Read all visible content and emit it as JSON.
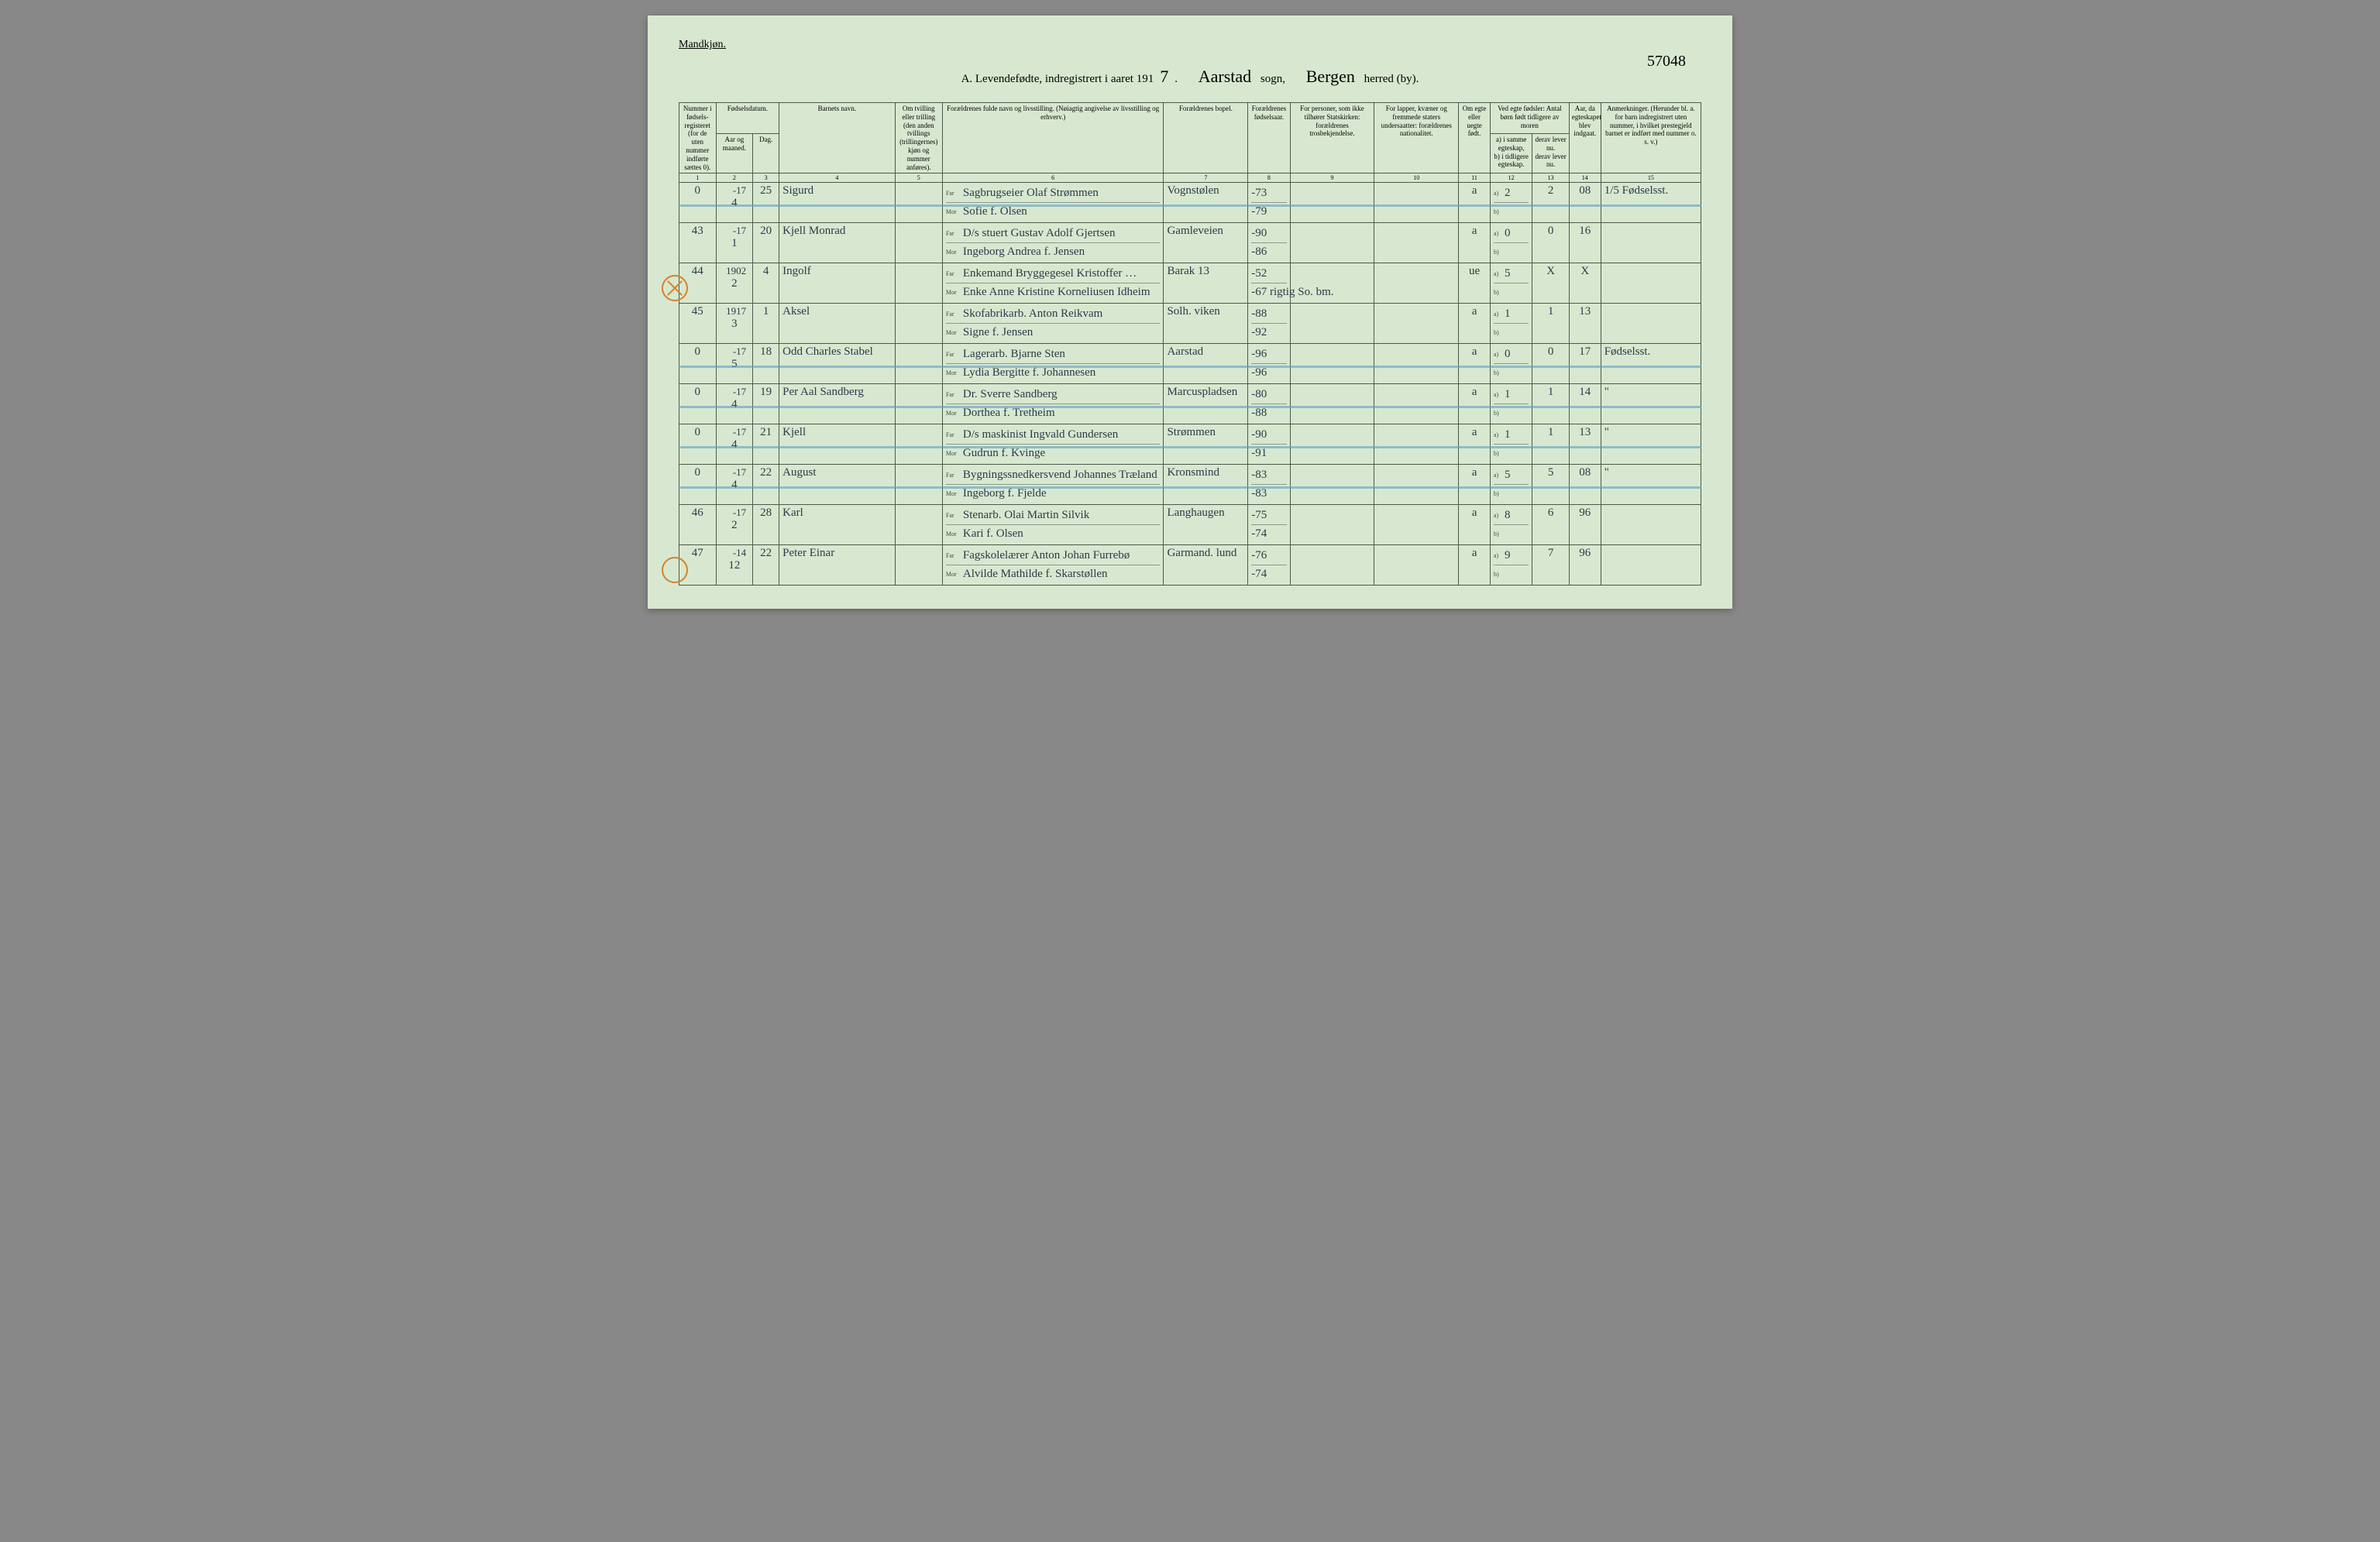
{
  "page": {
    "gender_label": "Mandkjøn.",
    "title_prefix": "A. Levendefødte, indregistrert i aaret 191",
    "year_suffix": "7",
    "sogn_value": "Aarstad",
    "sogn_label": "sogn,",
    "herred_value": "Bergen",
    "herred_label": "herred (by).",
    "page_code": "57048"
  },
  "headers": {
    "h1": "Nummer i fødsels-registeret (for de uten nummer indførte sættes 0).",
    "h2_top": "Fødselsdatum.",
    "h2a": "Aar og maaned.",
    "h2b": "Dag.",
    "h4": "Barnets navn.",
    "h5": "Om tvilling eller trilling (den anden tvillings (trillingernes) kjøn og nummer anføres).",
    "h6": "Forældrenes fulde navn og livsstilling. (Nøiagtig angivelse av livsstilling og erhverv.)",
    "h7": "Forældrenes bopel.",
    "h8": "Forældrenes fødselsaar.",
    "h9": "For personer, som ikke tilhører Statskirken: forældrenes trosbekjendelse.",
    "h10": "For lapper, kvæner og fremmede staters undersaatter: forældrenes nationalitet.",
    "h11": "Om egte eller uegte født.",
    "h12_top": "Ved egte fødsler: Antal børn født tidligere av moren",
    "h12a": "a) i samme egteskap,",
    "h12b": "b) i tidligere egteskap.",
    "h13a": "derav lever nu.",
    "h13b": "derav lever nu.",
    "h14": "Aar, da egteskapet blev indgaat.",
    "h15": "Anmerkninger. (Herunder bl. a. for barn indregistrert uten nummer, i hvilket prestegjeld barnet er indført med nummer o. s. v.)"
  },
  "colnums": [
    "1",
    "2",
    "3",
    "4",
    "5",
    "6",
    "7",
    "8",
    "9",
    "10",
    "11",
    "12",
    "13",
    "14",
    "15"
  ],
  "parent_labels": {
    "far": "Far",
    "mor": "Mor",
    "a": "a)",
    "b": "b)"
  },
  "rows": [
    {
      "num": "0",
      "year": "-17",
      "month": "4",
      "day": "25",
      "name": "Sigurd",
      "far": "Sagbrugseier Olaf Strømmen",
      "mor": "Sofie f. Olsen",
      "bopel": "Vognstølen",
      "far_yr": "-73",
      "mor_yr": "-79",
      "egte": "a",
      "c12a": "2",
      "c13a": "2",
      "c14": "08",
      "remarks": "1/5   Fødselsst.",
      "highlight": true
    },
    {
      "num": "43",
      "year": "-17",
      "month": "1",
      "day": "20",
      "name": "Kjell Monrad",
      "far": "D/s stuert Gustav Adolf Gjertsen",
      "mor": "Ingeborg Andrea f. Jensen",
      "bopel": "Gamleveien",
      "far_yr": "-90",
      "mor_yr": "-86",
      "egte": "a",
      "c12a": "0",
      "c13a": "0",
      "c14": "16",
      "remarks": ""
    },
    {
      "num": "44",
      "year": "1902",
      "month": "2",
      "day": "4",
      "name": "Ingolf",
      "far": "Enkemand Bryggegesel Kristoffer …",
      "mor": "Enke Anne Kristine Korneliusen Idheim",
      "bopel": "Barak 13",
      "far_yr": "-52",
      "mor_yr": "-67 rigtig So. bm.",
      "egte": "ue",
      "c12a": "5",
      "c13a": "X",
      "c14": "X",
      "remarks": "",
      "circle_x": true
    },
    {
      "num": "45",
      "year": "1917",
      "month": "3",
      "day": "1",
      "name": "Aksel",
      "far": "Skofabrikarb. Anton Reikvam",
      "mor": "Signe f. Jensen",
      "bopel": "Solh. viken",
      "far_yr": "-88",
      "mor_yr": "-92",
      "egte": "a",
      "c12a": "1",
      "c13a": "1",
      "c14": "13",
      "remarks": ""
    },
    {
      "num": "0",
      "year": "-17",
      "month": "5",
      "day": "18",
      "name": "Odd Charles Stabel",
      "far": "Lagerarb. Bjarne Sten",
      "mor": "Lydia Bergitte f. Johannesen",
      "bopel": "Aarstad",
      "far_yr": "-96",
      "mor_yr": "-96",
      "egte": "a",
      "c12a": "0",
      "c13a": "0",
      "c14": "17",
      "remarks": "Fødselsst.",
      "highlight": true
    },
    {
      "num": "0",
      "year": "-17",
      "month": "4",
      "day": "19",
      "name": "Per Aal Sandberg",
      "far": "Dr. Sverre Sandberg",
      "mor": "Dorthea f. Tretheim",
      "bopel": "Marcuspladsen",
      "far_yr": "-80",
      "mor_yr": "-88",
      "egte": "a",
      "c12a": "1",
      "c13a": "1",
      "c14": "14",
      "remarks": "\"",
      "highlight": true
    },
    {
      "num": "0",
      "year": "-17",
      "month": "4",
      "day": "21",
      "name": "Kjell",
      "far": "D/s maskinist Ingvald Gundersen",
      "mor": "Gudrun f. Kvinge",
      "bopel": "Strømmen",
      "far_yr": "-90",
      "mor_yr": "-91",
      "egte": "a",
      "c12a": "1",
      "c13a": "1",
      "c14": "13",
      "remarks": "\"",
      "highlight": true
    },
    {
      "num": "0",
      "year": "-17",
      "month": "4",
      "day": "22",
      "name": "August",
      "far": "Bygningssnedkersvend Johannes Træland",
      "mor": "Ingeborg f. Fjelde",
      "bopel": "Kronsmind",
      "far_yr": "-83",
      "mor_yr": "-83",
      "egte": "a",
      "c12a": "5",
      "c13a": "5",
      "c14": "08",
      "remarks": "\"",
      "highlight": true
    },
    {
      "num": "46",
      "year": "-17",
      "month": "2",
      "day": "28",
      "name": "Karl",
      "far": "Stenarb. Olai Martin Silvik",
      "mor": "Kari f. Olsen",
      "bopel": "Langhaugen",
      "far_yr": "-75",
      "mor_yr": "-74",
      "egte": "a",
      "c12a": "8",
      "c13a": "6",
      "c14": "96",
      "remarks": ""
    },
    {
      "num": "47",
      "year": "-14",
      "month": "12",
      "day": "22",
      "name": "Peter Einar",
      "far": "Fagskolelærer Anton Johan Furrebø",
      "mor": "Alvilde Mathilde f. Skarstøllen",
      "bopel": "Garmand. lund",
      "far_yr": "-76",
      "mor_yr": "-74",
      "egte": "a",
      "c12a": "9",
      "c13a": "7",
      "c14": "96",
      "remarks": "",
      "circle": true
    }
  ],
  "style": {
    "page_bg": "#d8e8d0",
    "border_color": "#4a5a4a",
    "highlight_color": "#5a9fc4",
    "circle_color": "#d4822a",
    "ink_color": "#2a3a4a"
  }
}
